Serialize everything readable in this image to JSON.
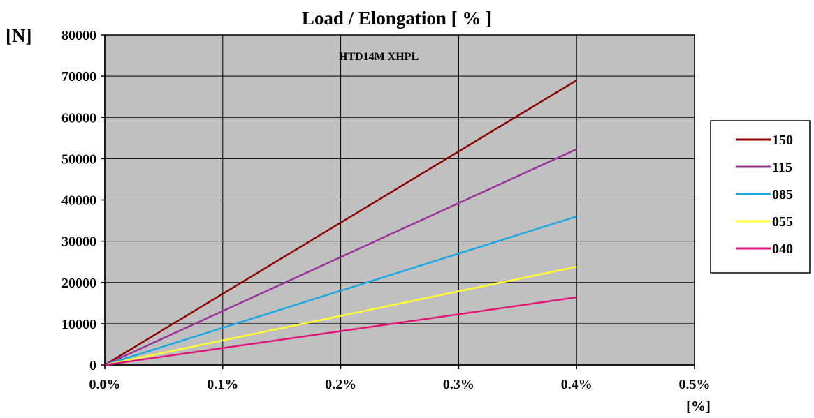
{
  "chart_data": {
    "type": "line",
    "title": "Load / Elongation [ % ]",
    "ylabel": "[N]",
    "xlabel": "[%]",
    "annotation": "HTD14M XHPL",
    "xlim": [
      0,
      0.5
    ],
    "ylim": [
      0,
      80000
    ],
    "x_ticks": [
      0,
      0.1,
      0.2,
      0.3,
      0.4,
      0.5
    ],
    "x_tick_labels": [
      "0.0%",
      "0.1%",
      "0.2%",
      "0.3%",
      "0.4%",
      "0.5%"
    ],
    "y_ticks": [
      0,
      10000,
      20000,
      30000,
      40000,
      50000,
      60000,
      70000,
      80000
    ],
    "y_tick_labels": [
      "0",
      "10000",
      "20000",
      "30000",
      "40000",
      "50000",
      "60000",
      "70000",
      "80000"
    ],
    "grid": true,
    "legend_position": "right",
    "plot_background": "#c0c0c0",
    "series": [
      {
        "name": "150",
        "color": "#8b0000",
        "x": [
          0,
          0.4
        ],
        "y": [
          0,
          69000
        ]
      },
      {
        "name": "115",
        "color": "#993399",
        "x": [
          0,
          0.4
        ],
        "y": [
          0,
          52300
        ]
      },
      {
        "name": "085",
        "color": "#1ea7e1",
        "x": [
          0,
          0.4
        ],
        "y": [
          0,
          36000
        ]
      },
      {
        "name": "055",
        "color": "#ffff33",
        "x": [
          0,
          0.4
        ],
        "y": [
          0,
          23800
        ]
      },
      {
        "name": "040",
        "color": "#e0187a",
        "x": [
          0,
          0.4
        ],
        "y": [
          0,
          16400
        ]
      }
    ]
  }
}
